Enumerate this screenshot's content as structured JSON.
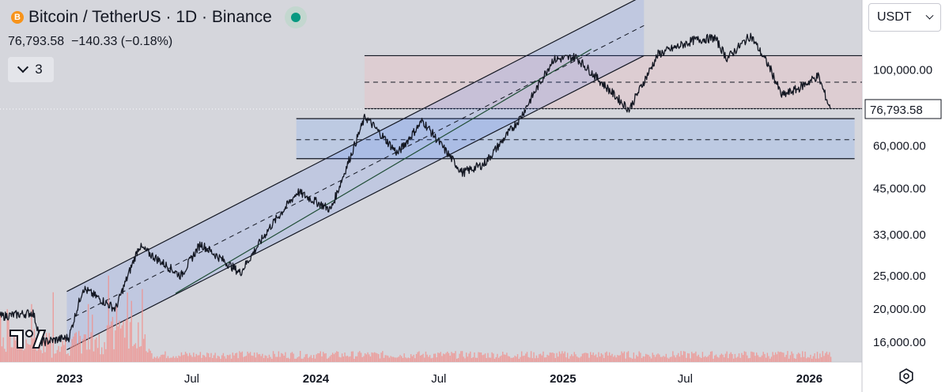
{
  "header": {
    "title": "Bitcoin / TetherUS · 1D · Binance",
    "price": "76,793.58",
    "change": "−140.33 (−0.18%)",
    "indicator_count": "3",
    "coin_letter": "B",
    "status_color": "#089981"
  },
  "currency_selector": {
    "value": "USDT"
  },
  "icons": [
    "bitcoin-icon",
    "chevron-down-icon",
    "tradingview-logo",
    "settings-icon"
  ],
  "chart_data": {
    "type": "line",
    "y_scale": "log",
    "ylim": [
      14000,
      160000
    ],
    "x_range": [
      "2022-09-20",
      "2026-03-20"
    ],
    "x_ticks": [
      {
        "date": "2023-01-01",
        "label": "2023",
        "bold": true
      },
      {
        "date": "2023-07-01",
        "label": "Jul",
        "bold": false
      },
      {
        "date": "2024-01-01",
        "label": "2024",
        "bold": true
      },
      {
        "date": "2024-07-01",
        "label": "Jul",
        "bold": false
      },
      {
        "date": "2025-01-01",
        "label": "2025",
        "bold": true
      },
      {
        "date": "2025-07-01",
        "label": "Jul",
        "bold": false
      },
      {
        "date": "2026-01-01",
        "label": "2026",
        "bold": true
      }
    ],
    "y_ticks": [
      {
        "value": 100000,
        "label": "100,000.00"
      },
      {
        "value": 60000,
        "label": "60,000.00"
      },
      {
        "value": 45000,
        "label": "45,000.00"
      },
      {
        "value": 33000,
        "label": "33,000.00"
      },
      {
        "value": 25000,
        "label": "25,000.00"
      },
      {
        "value": 20000,
        "label": "20,000.00"
      },
      {
        "value": 16000,
        "label": "16,000.00"
      }
    ],
    "last_price": {
      "value": 76793.58,
      "label": "76,793.58"
    },
    "series": [
      {
        "x": [
          "2022-09-20",
          "2022-11-08",
          "2022-11-21",
          "2022-12-31",
          "2023-01-21",
          "2023-03-10",
          "2023-04-14",
          "2023-06-15",
          "2023-07-14",
          "2023-09-11",
          "2023-10-24",
          "2023-12-05",
          "2024-01-23",
          "2024-03-14",
          "2024-05-01",
          "2024-06-07",
          "2024-08-05",
          "2024-09-06",
          "2024-10-29",
          "2024-12-17",
          "2025-01-20",
          "2025-04-09",
          "2025-05-22",
          "2025-07-14",
          "2025-08-14",
          "2025-09-01",
          "2025-10-06",
          "2025-11-04",
          "2025-11-21",
          "2025-12-15",
          "2026-01-14",
          "2026-02-01"
        ],
        "y": [
          19000,
          19500,
          16000,
          16500,
          23000,
          20000,
          30500,
          25000,
          31000,
          25500,
          34500,
          44000,
          39000,
          73000,
          57000,
          71000,
          50000,
          53000,
          72000,
          107000,
          109000,
          76500,
          111000,
          122000,
          124000,
          108000,
          126000,
          101000,
          84000,
          88000,
          96000,
          76793.58
        ]
      }
    ],
    "volume": {
      "color": "#f0908c",
      "max_ratio": 1.0
    },
    "drawings": {
      "channel": {
        "color": "#2962ff",
        "start": {
          "date": "2022-12-28",
          "lower": 15200,
          "upper": 22500
        },
        "end": {
          "date": "2025-05-01",
          "lower": 110000,
          "upper": 165000
        },
        "parallel_line": {
          "start": {
            "date": "2023-06-07",
            "value": 22200
          },
          "end": {
            "date": "2025-02-12",
            "value": 115000
          }
        }
      },
      "upper_range": {
        "color": "#e5c3c8",
        "start": "2024-03-13",
        "end": "2026-03-20",
        "top": 110000,
        "mid": 92000,
        "bottom": 77000
      },
      "lower_range": {
        "color": "#a5bde8",
        "start": "2023-12-03",
        "end": "2026-03-09",
        "top": 72000,
        "mid": 62500,
        "bottom": 55000
      }
    }
  }
}
